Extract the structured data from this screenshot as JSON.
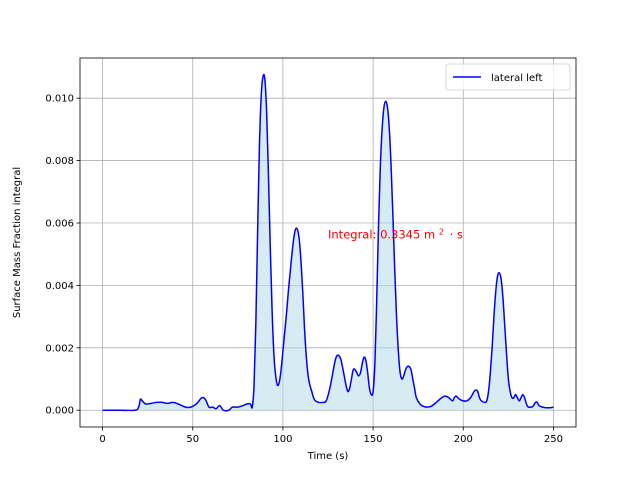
{
  "chart_data": {
    "type": "area",
    "title": "",
    "xlabel": "Time (s)",
    "ylabel": "Surface Mass Fraction integral",
    "xlim": [
      -12.5,
      262.5
    ],
    "ylim": [
      -0.0005375,
      0.0112875
    ],
    "grid": true,
    "legend": {
      "placement": "top-right",
      "entries": [
        "lateral left"
      ]
    },
    "x_ticks": [
      {
        "value": 0,
        "label": "0"
      },
      {
        "value": 50,
        "label": "50"
      },
      {
        "value": 100,
        "label": "100"
      },
      {
        "value": 150,
        "label": "150"
      },
      {
        "value": 200,
        "label": "200"
      },
      {
        "value": 250,
        "label": "250"
      }
    ],
    "y_ticks": [
      {
        "value": 0.0,
        "label": "0.000"
      },
      {
        "value": 0.002,
        "label": "0.002"
      },
      {
        "value": 0.004,
        "label": "0.004"
      },
      {
        "value": 0.006,
        "label": "0.006"
      },
      {
        "value": 0.008,
        "label": "0.008"
      },
      {
        "value": 0.01,
        "label": "0.010"
      }
    ],
    "annotation": {
      "prefix": "Integral: 0.3345",
      "unit": "m",
      "superscript": "2",
      "suffix": "· s",
      "x": 125,
      "y": 0.0055,
      "color": "#ff0000"
    },
    "series": [
      {
        "name": "lateral left",
        "color": "#0000ff",
        "fill": "#add8e6",
        "fill_opacity": 0.5,
        "points": [
          [
            0,
            0.0
          ],
          [
            10,
            0.0
          ],
          [
            18,
            0.0
          ],
          [
            20,
            0.0001
          ],
          [
            21,
            0.00035
          ],
          [
            22,
            0.0003
          ],
          [
            24,
            0.0002
          ],
          [
            27,
            0.00022
          ],
          [
            30,
            0.00025
          ],
          [
            33,
            0.00025
          ],
          [
            36,
            0.00022
          ],
          [
            39,
            0.00025
          ],
          [
            42,
            0.0002
          ],
          [
            46,
            0.0001
          ],
          [
            49,
            0.0001
          ],
          [
            52,
            0.0002
          ],
          [
            55,
            0.0004
          ],
          [
            57,
            0.00035
          ],
          [
            59,
            0.0001
          ],
          [
            61,
            0.0001
          ],
          [
            63,
            5e-05
          ],
          [
            65,
            0.00015
          ],
          [
            67,
            0.0
          ],
          [
            70,
            0.0
          ],
          [
            72,
            0.0001
          ],
          [
            75,
            0.0001
          ],
          [
            78,
            0.00015
          ],
          [
            80,
            0.0002
          ],
          [
            82,
            0.0002
          ],
          [
            83,
            0.0001
          ],
          [
            84,
            0.0008
          ],
          [
            85,
            0.0028
          ],
          [
            86,
            0.0058
          ],
          [
            87,
            0.0085
          ],
          [
            88,
            0.0101
          ],
          [
            89,
            0.0107
          ],
          [
            90,
            0.0106
          ],
          [
            91,
            0.0095
          ],
          [
            92,
            0.0075
          ],
          [
            93,
            0.0052
          ],
          [
            94,
            0.0032
          ],
          [
            95,
            0.0018
          ],
          [
            96,
            0.0011
          ],
          [
            97,
            0.0008
          ],
          [
            98,
            0.0009
          ],
          [
            99,
            0.0013
          ],
          [
            100,
            0.0019
          ],
          [
            101,
            0.0025
          ],
          [
            102,
            0.0031
          ],
          [
            103,
            0.0038
          ],
          [
            104,
            0.0044
          ],
          [
            105,
            0.005
          ],
          [
            106,
            0.0055
          ],
          [
            107,
            0.0058
          ],
          [
            108,
            0.0058
          ],
          [
            109,
            0.0055
          ],
          [
            110,
            0.0048
          ],
          [
            111,
            0.0038
          ],
          [
            112,
            0.0026
          ],
          [
            113,
            0.0017
          ],
          [
            114,
            0.0011
          ],
          [
            115,
            0.0008
          ],
          [
            116,
            0.0006
          ],
          [
            117,
            0.0004
          ],
          [
            118,
            0.0003
          ],
          [
            120,
            0.00025
          ],
          [
            122,
            0.00025
          ],
          [
            124,
            0.0003
          ],
          [
            126,
            0.0007
          ],
          [
            128,
            0.0013
          ],
          [
            129,
            0.0016
          ],
          [
            130,
            0.00175
          ],
          [
            131,
            0.00175
          ],
          [
            132,
            0.00165
          ],
          [
            133,
            0.0014
          ],
          [
            134,
            0.0011
          ],
          [
            135,
            0.0008
          ],
          [
            136,
            0.0006
          ],
          [
            137,
            0.0007
          ],
          [
            138,
            0.001
          ],
          [
            139,
            0.0013
          ],
          [
            140,
            0.0013
          ],
          [
            141,
            0.0012
          ],
          [
            142,
            0.0011
          ],
          [
            143,
            0.0012
          ],
          [
            144,
            0.0015
          ],
          [
            145,
            0.0017
          ],
          [
            146,
            0.0016
          ],
          [
            147,
            0.0012
          ],
          [
            148,
            0.0007
          ],
          [
            149,
            0.0005
          ],
          [
            150,
            0.0006
          ],
          [
            151,
            0.0015
          ],
          [
            152,
            0.0035
          ],
          [
            153,
            0.0059
          ],
          [
            154,
            0.0078
          ],
          [
            155,
            0.009
          ],
          [
            156,
            0.0097
          ],
          [
            157,
            0.0099
          ],
          [
            158,
            0.0097
          ],
          [
            159,
            0.009
          ],
          [
            160,
            0.0078
          ],
          [
            161,
            0.0062
          ],
          [
            162,
            0.0045
          ],
          [
            163,
            0.003
          ],
          [
            164,
            0.0019
          ],
          [
            165,
            0.0012
          ],
          [
            166,
            0.001
          ],
          [
            167,
            0.0011
          ],
          [
            168,
            0.0013
          ],
          [
            169,
            0.0014
          ],
          [
            170,
            0.0014
          ],
          [
            171,
            0.0013
          ],
          [
            172,
            0.001
          ],
          [
            173,
            0.0007
          ],
          [
            174,
            0.0004
          ],
          [
            176,
            0.0002
          ],
          [
            178,
            0.00012
          ],
          [
            180,
            0.0001
          ],
          [
            182,
            0.00012
          ],
          [
            184,
            0.0002
          ],
          [
            186,
            0.0003
          ],
          [
            188,
            0.0004
          ],
          [
            190,
            0.00045
          ],
          [
            192,
            0.0004
          ],
          [
            194,
            0.0003
          ],
          [
            195,
            0.0004
          ],
          [
            196,
            0.00045
          ],
          [
            197,
            0.0004
          ],
          [
            198,
            0.00035
          ],
          [
            200,
            0.0003
          ],
          [
            202,
            0.0003
          ],
          [
            204,
            0.0004
          ],
          [
            206,
            0.0006
          ],
          [
            207,
            0.00065
          ],
          [
            208,
            0.0006
          ],
          [
            209,
            0.0004
          ],
          [
            210,
            0.0003
          ],
          [
            212,
            0.00025
          ],
          [
            213,
            0.0003
          ],
          [
            214,
            0.0006
          ],
          [
            215,
            0.0012
          ],
          [
            216,
            0.002
          ],
          [
            217,
            0.003
          ],
          [
            218,
            0.0038
          ],
          [
            219,
            0.0043
          ],
          [
            220,
            0.0044
          ],
          [
            221,
            0.0042
          ],
          [
            222,
            0.0036
          ],
          [
            223,
            0.0027
          ],
          [
            224,
            0.0018
          ],
          [
            225,
            0.001
          ],
          [
            226,
            0.0006
          ],
          [
            227,
            0.0004
          ],
          [
            228,
            0.0004
          ],
          [
            229,
            0.0005
          ],
          [
            230,
            0.0004
          ],
          [
            231,
            0.0003
          ],
          [
            232,
            0.0004
          ],
          [
            233,
            0.0005
          ],
          [
            234,
            0.0004
          ],
          [
            235,
            0.0002
          ],
          [
            236,
            0.0001
          ],
          [
            237,
            0.0001
          ],
          [
            238,
            0.0001
          ],
          [
            239,
            0.00015
          ],
          [
            240,
            0.00025
          ],
          [
            241,
            0.00025
          ],
          [
            242,
            0.00015
          ],
          [
            244,
            0.0001
          ],
          [
            246,
            8e-05
          ],
          [
            248,
            8e-05
          ],
          [
            250,
            0.0001
          ]
        ]
      }
    ]
  }
}
